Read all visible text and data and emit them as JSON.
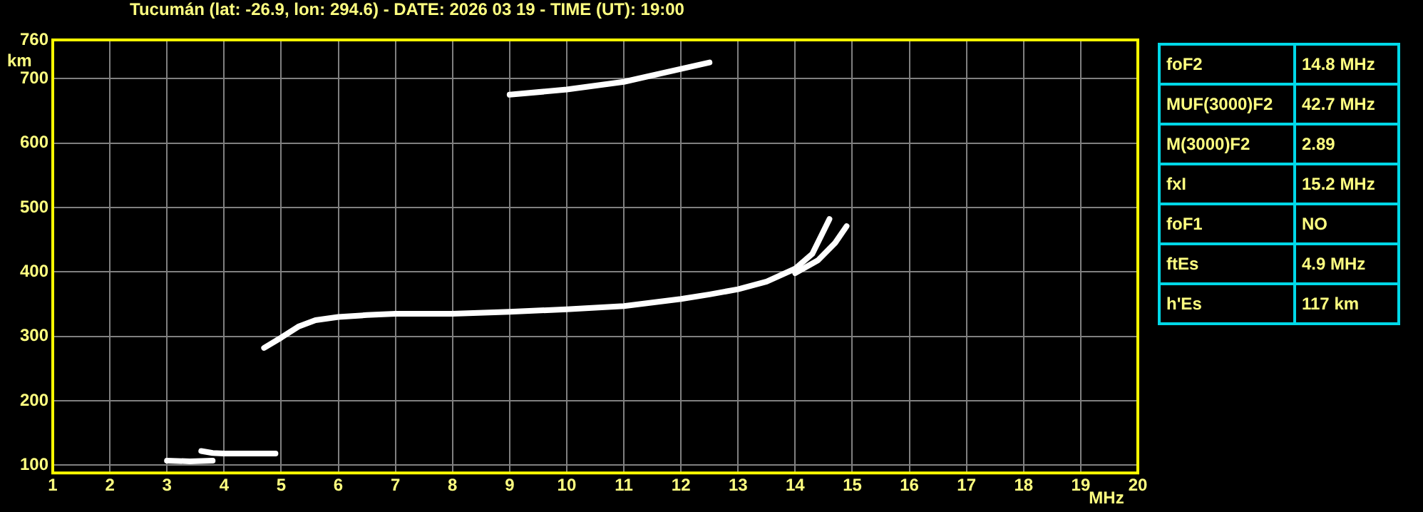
{
  "chart_data": [
    {
      "type": "line",
      "title": "Tucumán (lat: -26.9, lon: 294.6) - DATE: 2026 03 19 - TIME (UT): 19:00",
      "xlabel": "MHz",
      "ylabel": "km",
      "xlim": [
        1,
        20
      ],
      "xticks": [
        1,
        2,
        3,
        4,
        5,
        6,
        7,
        8,
        9,
        10,
        11,
        12,
        13,
        14,
        15,
        16,
        17,
        18,
        19,
        20
      ],
      "ylim": [
        88,
        760
      ],
      "yticks": [
        100,
        200,
        300,
        400,
        500,
        600,
        700,
        760
      ],
      "grid": true,
      "legend": false,
      "marker": "none",
      "line_style": "solid",
      "series": [
        {
          "color": "#ffffff",
          "x": [
            4.7,
            5.0,
            5.3,
            5.6,
            6.0,
            6.5,
            7,
            8,
            9,
            10,
            11,
            12,
            12.5,
            13,
            13.5,
            14,
            14.3,
            14.6
          ],
          "values": [
            282,
            298,
            315,
            325,
            330,
            333,
            335,
            335,
            338,
            342,
            347,
            358,
            365,
            373,
            385,
            405,
            428,
            482
          ]
        },
        {
          "color": "#ffffff",
          "x": [
            14.0,
            14.4,
            14.7,
            14.9
          ],
          "values": [
            398,
            418,
            445,
            471
          ]
        },
        {
          "color": "#ffffff",
          "x": [
            9.0,
            10,
            11,
            12,
            12.5
          ],
          "values": [
            675,
            683,
            695,
            715,
            725
          ]
        },
        {
          "color": "#ffffff",
          "x": [
            3.0,
            3.4,
            3.8
          ],
          "values": [
            107,
            106,
            107
          ]
        },
        {
          "color": "#ffffff",
          "x": [
            3.6,
            3.8,
            4.0,
            4.5,
            4.9
          ],
          "values": [
            122,
            119,
            118,
            118,
            118
          ]
        }
      ]
    },
    {
      "type": "other",
      "annotations": [
        "foF2",
        "14.8 MHz",
        "MUF(3000)F2",
        "42.7 MHz",
        "M(3000)F2",
        "2.89",
        "fxI",
        "15.2 MHz",
        "foF1",
        "NO",
        "ftEs",
        "4.9 MHz",
        "h'Es",
        "117 km"
      ]
    }
  ]
}
